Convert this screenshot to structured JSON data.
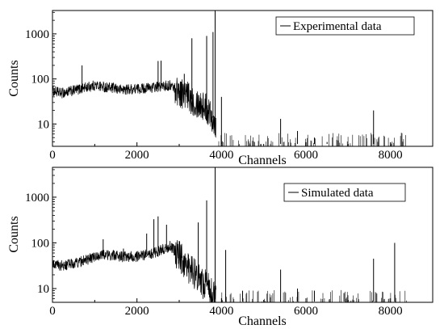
{
  "chart_data": [
    {
      "type": "line",
      "xlabel": "Channels",
      "ylabel": "Counts",
      "xlim": [
        0,
        9000
      ],
      "ylim": [
        3.2,
        3300
      ],
      "yscale": "log",
      "grid": false,
      "legend": "top-right",
      "xticks": [
        "0",
        "2000",
        "4000",
        "6000",
        "8000"
      ],
      "yticks": [
        "10",
        "100",
        "1000"
      ],
      "series": [
        {
          "name": "Experimental data",
          "color": "#000000",
          "baseline": [
            [
              0,
              55
            ],
            [
              200,
              48
            ],
            [
              500,
              55
            ],
            [
              800,
              65
            ],
            [
              1000,
              72
            ],
            [
              1300,
              65
            ],
            [
              1600,
              58
            ],
            [
              2000,
              60
            ],
            [
              2400,
              65
            ],
            [
              2800,
              72
            ],
            [
              2900,
              62
            ],
            [
              3200,
              40
            ],
            [
              3500,
              28
            ],
            [
              3700,
              20
            ],
            [
              3800,
              14
            ],
            [
              3870,
              9
            ]
          ],
          "peaks": [
            [
              700,
              200
            ],
            [
              2500,
              250
            ],
            [
              2570,
              255
            ],
            [
              3120,
              130
            ],
            [
              3300,
              800
            ],
            [
              3650,
              900
            ],
            [
              3800,
              1100
            ],
            [
              3850,
              3300
            ],
            [
              4000,
              40
            ],
            [
              5400,
              13
            ],
            [
              5800,
              7
            ],
            [
              6200,
              5
            ],
            [
              6500,
              4
            ],
            [
              7600,
              20
            ]
          ],
          "noise_floor": 3.6
        }
      ]
    },
    {
      "type": "line",
      "xlabel": "Channels",
      "ylabel": "Counts",
      "xlim": [
        0,
        9000
      ],
      "ylim": [
        5,
        4500
      ],
      "yscale": "log",
      "grid": false,
      "legend": "top-right",
      "xticks": [
        "0",
        "2000",
        "4000",
        "6000",
        "8000"
      ],
      "yticks": [
        "10",
        "100",
        "1000"
      ],
      "series": [
        {
          "name": "Simulated data",
          "color": "#000000",
          "baseline": [
            [
              0,
              35
            ],
            [
              200,
              32
            ],
            [
              500,
              35
            ],
            [
              800,
              42
            ],
            [
              1000,
              50
            ],
            [
              1300,
              55
            ],
            [
              1600,
              50
            ],
            [
              2000,
              50
            ],
            [
              2400,
              60
            ],
            [
              2800,
              85
            ],
            [
              2900,
              65
            ],
            [
              3200,
              30
            ],
            [
              3500,
              15
            ],
            [
              3700,
              10
            ],
            [
              3800,
              7
            ],
            [
              3870,
              5.5
            ]
          ],
          "peaks": [
            [
              1200,
              120
            ],
            [
              1680,
              75
            ],
            [
              2230,
              160
            ],
            [
              2400,
              330
            ],
            [
              2500,
              380
            ],
            [
              2700,
              250
            ],
            [
              3000,
              110
            ],
            [
              3450,
              280
            ],
            [
              3650,
              850
            ],
            [
              3850,
              4500
            ],
            [
              4100,
              70
            ],
            [
              4500,
              9
            ],
            [
              5400,
              26
            ],
            [
              5800,
              10
            ],
            [
              6200,
              9
            ],
            [
              6900,
              8
            ],
            [
              7600,
              45
            ],
            [
              8100,
              100
            ]
          ],
          "noise_floor": 5.2
        }
      ]
    }
  ]
}
